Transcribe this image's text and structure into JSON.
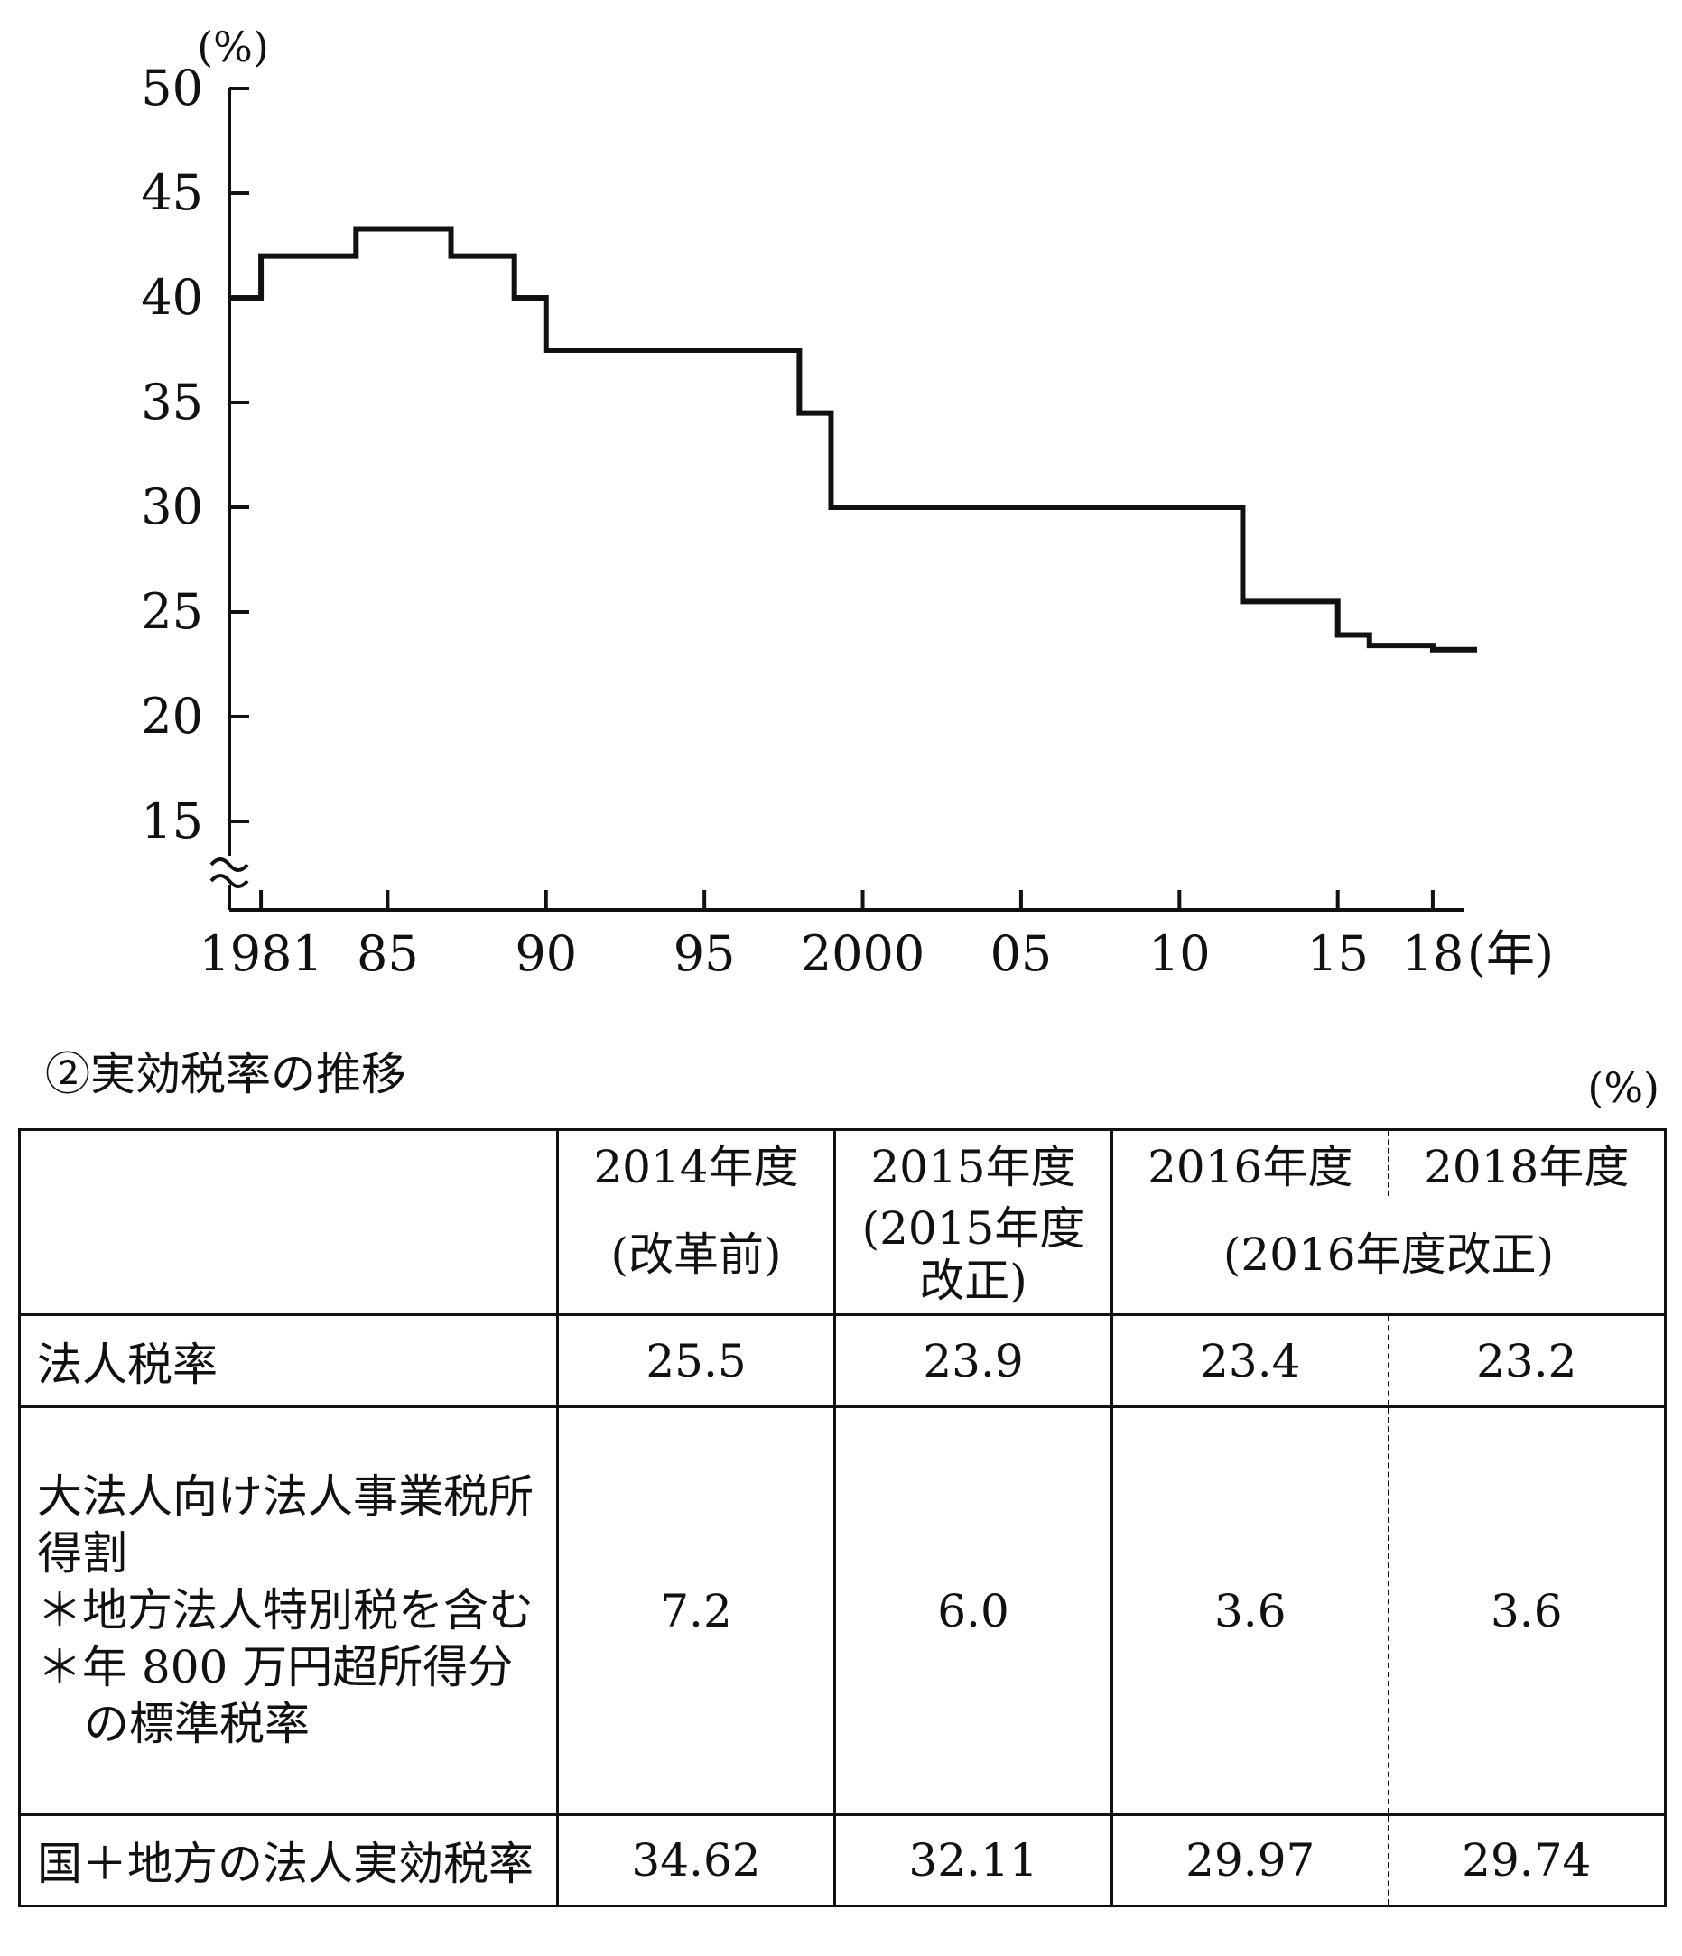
{
  "chart_data": {
    "type": "line",
    "step": true,
    "unit_label": "(%)",
    "x_unit_label": "(年)",
    "xlim": [
      1980,
      2019
    ],
    "ylim": [
      10,
      50
    ],
    "y_ticks": [
      15,
      20,
      25,
      30,
      35,
      40,
      45,
      50
    ],
    "y_tick_labels": [
      "15",
      "20",
      "25",
      "30",
      "35",
      "40",
      "45",
      "50"
    ],
    "x_ticks": [
      1981,
      1985,
      1990,
      1995,
      2000,
      2005,
      2010,
      2015,
      2018
    ],
    "x_tick_labels": [
      "1981",
      "85",
      "90",
      "95",
      "2000",
      "05",
      "10",
      "15",
      "18"
    ],
    "axis_break": true,
    "series": [
      {
        "x": [
          1980,
          1981,
          1984,
          1987,
          1989,
          1990,
          1998,
          1999,
          2012,
          2015,
          2016,
          2018,
          2019.4
        ],
        "y": [
          40.0,
          42.0,
          43.3,
          42.0,
          40.0,
          37.5,
          34.5,
          30.0,
          25.5,
          23.9,
          23.4,
          23.2,
          23.2
        ]
      }
    ]
  },
  "table": {
    "title": "②実効税率の推移",
    "unit": "(%)",
    "headers": [
      {
        "year": "2014年度",
        "sub": "(改革前)"
      },
      {
        "year": "2015年度",
        "sub": "(2015年度改正)"
      },
      {
        "year": "2016年度",
        "sub": "(2016年度改正)"
      },
      {
        "year": "2018年度",
        "sub": ""
      }
    ],
    "rows": [
      {
        "label": "法人税率",
        "values": [
          "25.5",
          "23.9",
          "23.4",
          "23.2"
        ]
      },
      {
        "label": "大法人向け法人事業税所得割",
        "notes": [
          "＊地方法人特別税を含む",
          "＊年 800 万円超所得分の標準税率"
        ],
        "values": [
          "7.2",
          "6.0",
          "3.6",
          "3.6"
        ]
      },
      {
        "label": "国＋地方の法人実効税率",
        "values": [
          "34.62",
          "32.11",
          "29.97",
          "29.74"
        ]
      }
    ]
  }
}
